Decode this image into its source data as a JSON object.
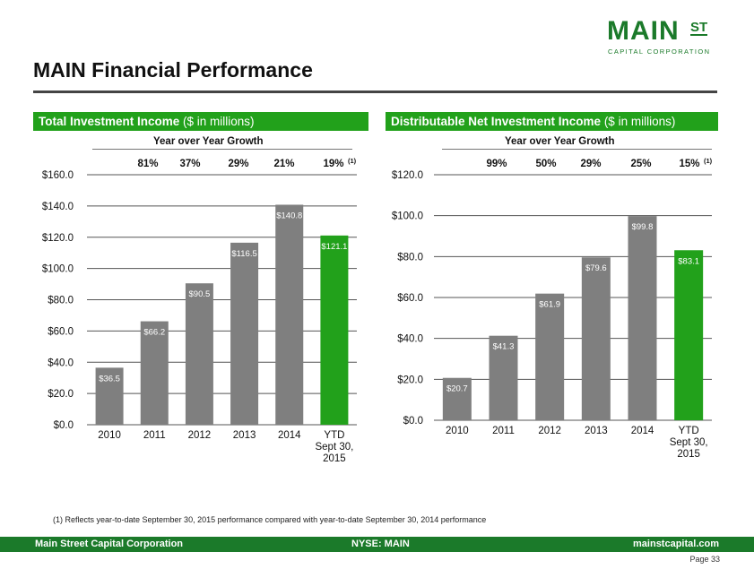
{
  "header": {
    "logo_main": "MAIN",
    "logo_st": "ST",
    "logo_sub": "CAPITAL CORPORATION",
    "title": "MAIN Financial Performance"
  },
  "panels": [
    {
      "title_bold": "Total Investment Income",
      "title_rest": " ($ in millions)",
      "growth_title": "Year over Year Growth"
    },
    {
      "title_bold": "Distributable Net Investment Income",
      "title_rest": " ($ in millions)",
      "growth_title": "Year over Year Growth"
    }
  ],
  "chart_data": [
    {
      "type": "bar",
      "title": "Total Investment Income ($ in millions)",
      "categories": [
        "2010",
        "2011",
        "2012",
        "2013",
        "2014",
        "YTD Sept 30, 2015"
      ],
      "category_lines": [
        [
          "2010"
        ],
        [
          "2011"
        ],
        [
          "2012"
        ],
        [
          "2013"
        ],
        [
          "2014"
        ],
        [
          "YTD",
          "Sept 30,",
          "2015"
        ]
      ],
      "values": [
        36.5,
        66.2,
        90.5,
        116.5,
        140.8,
        121.1
      ],
      "data_labels": [
        "$36.5",
        "$66.2",
        "$90.5",
        "$116.5",
        "$140.8",
        "$121.1"
      ],
      "growth": [
        "81%",
        "37%",
        "29%",
        "21%",
        "19%"
      ],
      "growth_note": "(1)",
      "ylim": [
        0,
        160
      ],
      "yticks": [
        0,
        20,
        40,
        60,
        80,
        100,
        120,
        140,
        160
      ],
      "ytick_labels": [
        "$0.0",
        "$20.0",
        "$40.0",
        "$60.0",
        "$80.0",
        "$100.0",
        "$120.0",
        "$140.0",
        "$160.0"
      ],
      "grid": true,
      "colors": [
        "#7f7f7f",
        "#7f7f7f",
        "#7f7f7f",
        "#7f7f7f",
        "#7f7f7f",
        "#22a11b"
      ]
    },
    {
      "type": "bar",
      "title": "Distributable Net Investment Income ($ in millions)",
      "categories": [
        "2010",
        "2011",
        "2012",
        "2013",
        "2014",
        "YTD Sept 30, 2015"
      ],
      "category_lines": [
        [
          "2010"
        ],
        [
          "2011"
        ],
        [
          "2012"
        ],
        [
          "2013"
        ],
        [
          "2014"
        ],
        [
          "YTD",
          "Sept 30,",
          "2015"
        ]
      ],
      "values": [
        20.7,
        41.3,
        61.9,
        79.6,
        99.8,
        83.1
      ],
      "data_labels": [
        "$20.7",
        "$41.3",
        "$61.9",
        "$79.6",
        "$99.8",
        "$83.1"
      ],
      "growth": [
        "99%",
        "50%",
        "29%",
        "25%",
        "15%"
      ],
      "growth_note": "(1)",
      "ylim": [
        0,
        120
      ],
      "yticks": [
        0,
        20,
        40,
        60,
        80,
        100,
        120
      ],
      "ytick_labels": [
        "$0.0",
        "$20.0",
        "$40.0",
        "$60.0",
        "$80.0",
        "$100.0",
        "$120.0"
      ],
      "grid": true,
      "colors": [
        "#7f7f7f",
        "#7f7f7f",
        "#7f7f7f",
        "#7f7f7f",
        "#7f7f7f",
        "#22a11b"
      ]
    }
  ],
  "footnote": "(1) Reflects year-to-date September 30, 2015 performance compared with year-to-date September 30, 2014 performance",
  "footer": {
    "left": "Main Street Capital Corporation",
    "center": "NYSE: MAIN",
    "right": "mainstcapital.com"
  },
  "page_number": "Page 33"
}
